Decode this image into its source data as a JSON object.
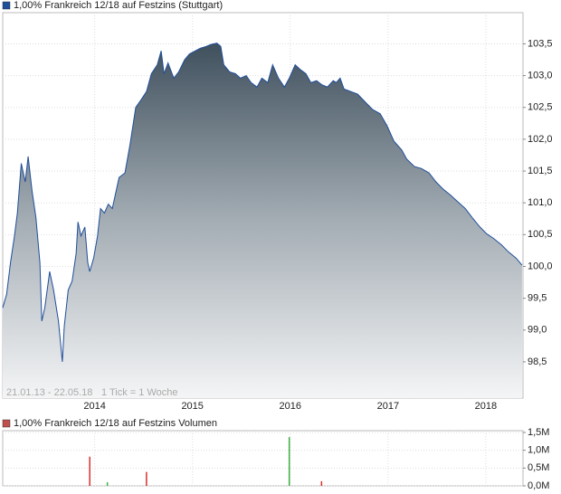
{
  "chart_data": [
    {
      "type": "area",
      "title": "1,00% Frankreich 12/18 auf Festzins (Stuttgart)",
      "annotations": [
        "21.01.13 - 22.05.18",
        "1 Tick = 1 Woche"
      ],
      "color": "#1f4e9a",
      "x": [
        2013.06,
        2013.1,
        2013.14,
        2013.18,
        2013.21,
        2013.25,
        2013.29,
        2013.32,
        2013.36,
        2013.4,
        2013.44,
        2013.46,
        2013.49,
        2013.54,
        2013.58,
        2013.63,
        2013.67,
        2013.69,
        2013.73,
        2013.77,
        2013.81,
        2013.83,
        2013.86,
        2013.9,
        2013.93,
        2013.95,
        2013.99,
        2014.03,
        2014.06,
        2014.1,
        2014.14,
        2014.18,
        2014.21,
        2014.25,
        2014.31,
        2014.36,
        2014.42,
        2014.47,
        2014.53,
        2014.58,
        2014.64,
        2014.68,
        2014.71,
        2014.75,
        2014.81,
        2014.86,
        2014.92,
        2014.97,
        2015.03,
        2015.08,
        2015.14,
        2015.19,
        2015.25,
        2015.29,
        2015.32,
        2015.38,
        2015.44,
        2015.49,
        2015.55,
        2015.6,
        2015.66,
        2015.71,
        2015.77,
        2015.82,
        2015.88,
        2015.94,
        2015.99,
        2016.05,
        2016.1,
        2016.16,
        2016.21,
        2016.27,
        2016.32,
        2016.38,
        2016.44,
        2016.47,
        2016.51,
        2016.55,
        2016.62,
        2016.69,
        2016.77,
        2016.84,
        2016.92,
        2016.99,
        2017.06,
        2017.14,
        2017.19,
        2017.27,
        2017.34,
        2017.42,
        2017.49,
        2017.56,
        2017.64,
        2017.71,
        2017.79,
        2017.86,
        2017.94,
        2018.01,
        2018.08,
        2018.16,
        2018.23,
        2018.31,
        2018.37
      ],
      "values": [
        99.35,
        99.56,
        100.06,
        100.48,
        100.84,
        101.62,
        101.33,
        101.73,
        101.19,
        100.77,
        100.06,
        99.14,
        99.35,
        99.92,
        99.63,
        99.14,
        98.5,
        99.07,
        99.63,
        99.77,
        100.2,
        100.7,
        100.48,
        100.62,
        100.06,
        99.92,
        100.13,
        100.48,
        100.91,
        100.84,
        100.98,
        100.91,
        101.12,
        101.4,
        101.47,
        101.9,
        102.5,
        102.61,
        102.75,
        103.03,
        103.17,
        103.39,
        103.03,
        103.2,
        102.96,
        103.06,
        103.25,
        103.34,
        103.39,
        103.43,
        103.46,
        103.49,
        103.51,
        103.46,
        103.17,
        103.06,
        103.03,
        102.96,
        103.0,
        102.89,
        102.82,
        102.96,
        102.89,
        103.17,
        102.96,
        102.82,
        102.96,
        103.17,
        103.1,
        103.03,
        102.89,
        102.92,
        102.86,
        102.82,
        102.92,
        102.89,
        102.96,
        102.79,
        102.75,
        102.71,
        102.58,
        102.47,
        102.4,
        102.21,
        101.97,
        101.83,
        101.69,
        101.57,
        101.54,
        101.47,
        101.33,
        101.22,
        101.12,
        101.02,
        100.91,
        100.77,
        100.62,
        100.51,
        100.44,
        100.34,
        100.23,
        100.13,
        100.02
      ],
      "xlim": [
        2013.06,
        2018.38
      ],
      "xticks": [
        2014,
        2015,
        2016,
        2017,
        2018
      ],
      "ylim": [
        97.93,
        103.99
      ],
      "yticks": [
        {
          "value": 98.5,
          "label": "98,5"
        },
        {
          "value": 99.0,
          "label": "99,0"
        },
        {
          "value": 99.5,
          "label": "99,5"
        },
        {
          "value": 100.0,
          "label": "100,0"
        },
        {
          "value": 100.5,
          "label": "100,5"
        },
        {
          "value": 101.0,
          "label": "101,0"
        },
        {
          "value": 101.5,
          "label": "101,5"
        },
        {
          "value": 102.0,
          "label": "102,0"
        },
        {
          "value": 102.5,
          "label": "102,5"
        },
        {
          "value": 103.0,
          "label": "103,0"
        },
        {
          "value": 103.5,
          "label": "103,5"
        }
      ],
      "grid": true
    },
    {
      "type": "bar",
      "title": "1,00% Frankreich 12/18 auf Festzins Volumen",
      "color": "#c0504d",
      "x": [
        2013.95,
        2014.13,
        2014.53,
        2015.99,
        2016.32
      ],
      "values": [
        0.82,
        0.1,
        0.39,
        1.37,
        0.13
      ],
      "colors": [
        "#d9302c",
        "#3cb043",
        "#d9302c",
        "#3cb043",
        "#d9302c"
      ],
      "xlim": [
        2013.06,
        2018.38
      ],
      "xticks": [
        2014,
        2015,
        2016,
        2017,
        2018
      ],
      "ylim": [
        0,
        1.55
      ],
      "yticks": [
        {
          "value": 0,
          "label": "0,0M"
        },
        {
          "value": 0.5,
          "label": "0,5M"
        },
        {
          "value": 1.0,
          "label": "1,0M"
        },
        {
          "value": 1.5,
          "label": "1,5M"
        }
      ],
      "grid": true
    }
  ]
}
